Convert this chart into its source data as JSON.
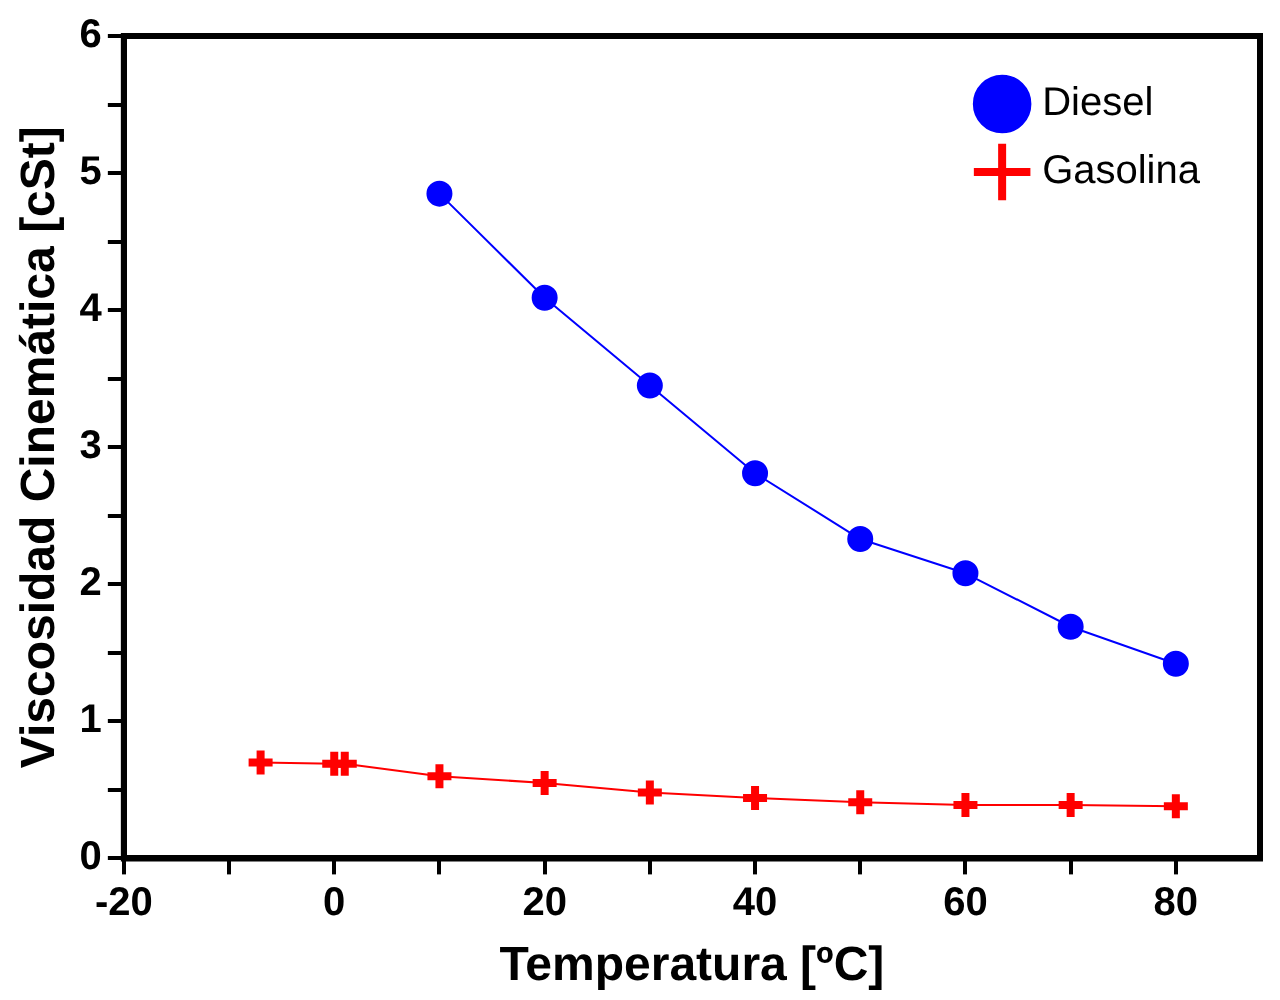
{
  "chart_data": {
    "type": "line",
    "xlabel": "Temperatura [ºC]",
    "ylabel": "Viscosidad Cinemática [cSt]",
    "xlim": [
      -20,
      88
    ],
    "xticks": [
      -20,
      {
        "value": -10,
        "label": null
      },
      0,
      {
        "value": 10,
        "label": null
      },
      20,
      {
        "value": 30,
        "label": null
      },
      40,
      {
        "value": 50,
        "label": null
      },
      60,
      {
        "value": 70,
        "label": null
      },
      80
    ],
    "ylim": [
      0,
      6
    ],
    "yticks": [
      0,
      {
        "value": 0.5,
        "label": null
      },
      1,
      {
        "value": 1.5,
        "label": null
      },
      2,
      {
        "value": 2.5,
        "label": null
      },
      3,
      {
        "value": 3.5,
        "label": null
      },
      4,
      {
        "value": 4.5,
        "label": null
      },
      5,
      {
        "value": 5.5,
        "label": null
      },
      6
    ],
    "grid": false,
    "legend": "top right",
    "line_style": "solid",
    "series": [
      {
        "name": "Diesel",
        "color": "#0000ff",
        "marker": "circle",
        "x": [
          10,
          20,
          30,
          40,
          50,
          60,
          70,
          80
        ],
        "values": [
          4.85,
          4.09,
          3.45,
          2.81,
          2.33,
          2.08,
          1.69,
          1.42
        ]
      },
      {
        "name": "Gasolina",
        "color": "#ff0000",
        "marker": "cross",
        "x": [
          -7,
          0,
          1,
          10,
          20,
          30,
          40,
          50,
          60,
          70,
          80
        ],
        "values": [
          0.7,
          0.69,
          0.69,
          0.6,
          0.55,
          0.48,
          0.44,
          0.41,
          0.39,
          0.39,
          0.38
        ]
      }
    ]
  }
}
